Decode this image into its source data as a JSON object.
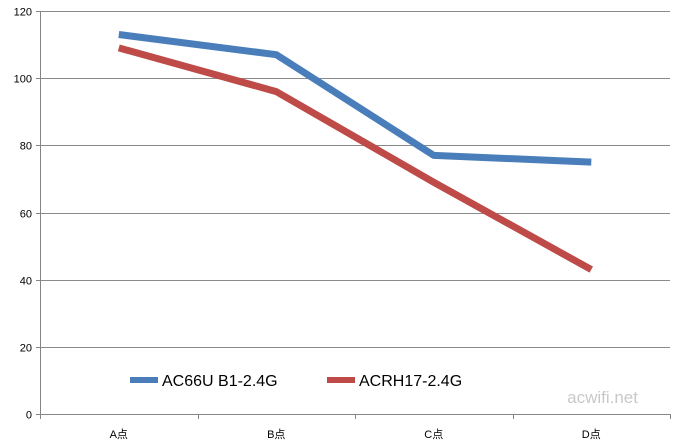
{
  "chart_data": {
    "type": "line",
    "categories": [
      "A点",
      "B点",
      "C点",
      "D点"
    ],
    "series": [
      {
        "name": "AC66U B1-2.4G",
        "values": [
          113,
          107,
          77,
          75
        ],
        "color": "#4a7ebb"
      },
      {
        "name": "ACRH17-2.4G",
        "values": [
          109,
          96,
          69,
          43
        ],
        "color": "#be4b48"
      }
    ],
    "ylim": [
      0,
      120
    ],
    "yticks": [
      0,
      20,
      40,
      60,
      80,
      100,
      120
    ],
    "grid": true,
    "legend_position": "bottom-left inside plot"
  },
  "watermark": "acwifi.net"
}
